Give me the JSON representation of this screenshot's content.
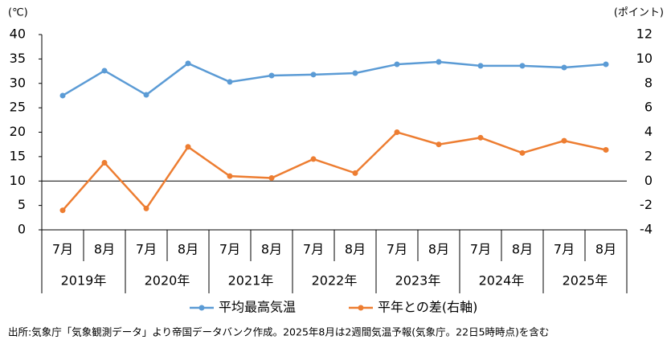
{
  "chart_data": {
    "type": "line",
    "y_unit": "(℃)",
    "y2_unit": "(ポイント)",
    "categories": [
      "7月",
      "8月",
      "7月",
      "8月",
      "7月",
      "8月",
      "7月",
      "8月",
      "7月",
      "8月",
      "7月",
      "8月",
      "7月",
      "8月"
    ],
    "year_groups": [
      "2019年",
      "2020年",
      "2021年",
      "2022年",
      "2023年",
      "2024年",
      "2025年"
    ],
    "series": [
      {
        "name": "平均最高気温",
        "color": "#5b9bd5",
        "values": [
          27.5,
          32.6,
          27.65,
          34.1,
          30.3,
          31.6,
          31.8,
          32.1,
          33.9,
          34.4,
          33.6,
          33.6,
          33.25,
          33.9
        ]
      },
      {
        "name": "平年との差(右軸)",
        "color": "#ed7d31",
        "axis": "y2",
        "values": [
          -2.4,
          1.5,
          -2.25,
          2.8,
          0.4,
          0.25,
          1.8,
          0.65,
          4.0,
          3.0,
          3.55,
          2.3,
          3.3,
          2.55
        ]
      }
    ],
    "ylim": [
      0,
      40
    ],
    "yticks": [
      0,
      5,
      10,
      15,
      20,
      25,
      30,
      35,
      40
    ],
    "y2lim": [
      -4,
      12
    ],
    "y2ticks": [
      -4,
      -2,
      0,
      2,
      4,
      6,
      8,
      10,
      12
    ],
    "legend": "bottom",
    "note": "出所:気象庁「気象観測データ」より帝国データバンク作成。2025年8月は2週間気温予報(気象庁。22日5時時点)を含む"
  }
}
